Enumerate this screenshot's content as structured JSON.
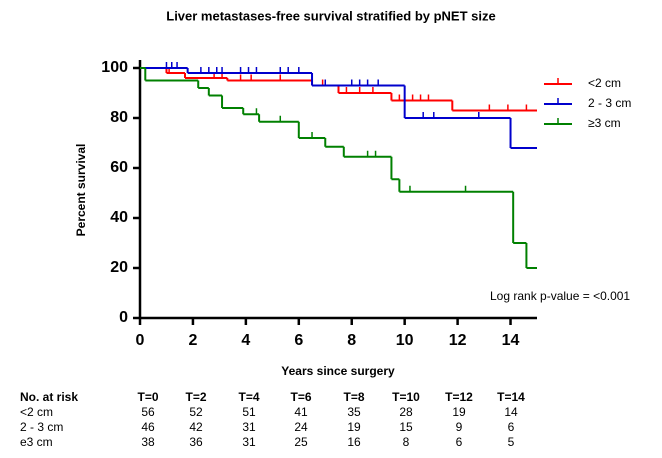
{
  "chart_data": {
    "type": "step",
    "title": "Liver metastases-free survival stratified by pNET size",
    "x_label": "Years since surgery",
    "y_label": "Percent survival",
    "xlim": [
      0,
      15
    ],
    "ylim": [
      0,
      100
    ],
    "xticks": [
      0,
      2,
      4,
      6,
      8,
      10,
      12,
      14
    ],
    "yticks": [
      0,
      20,
      40,
      60,
      80,
      100
    ],
    "annotation": "Log rank p-value = <0.001",
    "series": [
      {
        "name": "<2 cm",
        "color": "#ff0000",
        "x": [
          0,
          1.0,
          1.7,
          3.3,
          6.5,
          7.5,
          9.5,
          11.8,
          15
        ],
        "values": [
          100,
          98,
          96,
          95,
          93,
          90,
          87,
          83,
          83
        ],
        "censored_x": [
          1.1,
          2.8,
          3.1,
          3.8,
          4.2,
          5.3,
          6.9,
          7.8,
          8.3,
          8.8,
          9.8,
          10.3,
          10.6,
          10.9,
          13.2,
          13.9,
          14.6
        ],
        "censored_values": [
          98,
          96,
          96,
          95,
          95,
          95,
          93,
          90,
          90,
          90,
          87,
          87,
          87,
          87,
          83,
          83,
          83
        ]
      },
      {
        "name": "2 - 3 cm",
        "color": "#0000cc",
        "x": [
          0,
          1.8,
          6.5,
          10.0,
          14.0,
          15
        ],
        "values": [
          100,
          98,
          93,
          80,
          68,
          68
        ],
        "censored_x": [
          1.0,
          1.2,
          1.4,
          2.3,
          2.6,
          2.9,
          3.1,
          3.8,
          4.1,
          4.4,
          5.3,
          5.6,
          6.0,
          7.0,
          8.0,
          8.3,
          8.6,
          9.0,
          10.7,
          11.1,
          12.8
        ],
        "censored_values": [
          100,
          100,
          100,
          98,
          98,
          98,
          98,
          98,
          98,
          98,
          98,
          98,
          98,
          93,
          93,
          93,
          93,
          93,
          80,
          80,
          80
        ]
      },
      {
        "name": "≥3 cm",
        "color": "#008000",
        "x": [
          0,
          0.2,
          2.2,
          2.6,
          3.1,
          3.9,
          4.5,
          6.0,
          7.0,
          7.7,
          9.5,
          9.8,
          14.1,
          14.6,
          15
        ],
        "values": [
          100,
          95,
          92,
          89,
          84,
          81.5,
          78.5,
          72,
          68.5,
          64.5,
          55.5,
          50.5,
          30,
          20,
          20
        ],
        "censored_x": [
          4.4,
          5.3,
          6.5,
          8.6,
          8.9,
          10.2,
          12.3
        ],
        "censored_values": [
          81.5,
          78.5,
          72,
          64.5,
          64.5,
          50.5,
          50.5
        ]
      }
    ],
    "risk_table": {
      "header": [
        "No. at risk",
        "T=0",
        "T=2",
        "T=4",
        "T=6",
        "T=8",
        "T=10",
        "T=12",
        "T=14"
      ],
      "rows": [
        {
          "label": "<2 cm",
          "values": [
            56,
            52,
            51,
            41,
            35,
            28,
            19,
            14
          ]
        },
        {
          "label": "2 - 3 cm",
          "values": [
            46,
            42,
            31,
            24,
            19,
            15,
            9,
            6
          ]
        },
        {
          "label": "e3 cm",
          "values": [
            38,
            36,
            31,
            25,
            16,
            8,
            6,
            5
          ]
        }
      ]
    }
  }
}
